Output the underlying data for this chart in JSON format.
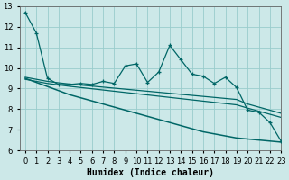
{
  "xlabel": "Humidex (Indice chaleur)",
  "bg_color": "#cce8e8",
  "grid_color": "#99cccc",
  "line_color": "#006666",
  "x": [
    0,
    1,
    2,
    3,
    4,
    5,
    6,
    7,
    8,
    9,
    10,
    11,
    12,
    13,
    14,
    15,
    16,
    17,
    18,
    19,
    20,
    21,
    22,
    23
  ],
  "y_jagged": [
    12.7,
    11.7,
    9.5,
    9.2,
    9.2,
    9.25,
    9.2,
    9.35,
    9.25,
    10.1,
    10.2,
    9.3,
    9.8,
    11.1,
    10.4,
    9.7,
    9.6,
    9.25,
    9.55,
    9.05,
    7.95,
    7.85,
    7.35,
    6.45
  ],
  "y_upper": [
    9.55,
    9.45,
    9.35,
    9.28,
    9.22,
    9.17,
    9.12,
    9.07,
    9.02,
    8.97,
    8.92,
    8.87,
    8.82,
    8.77,
    8.72,
    8.67,
    8.62,
    8.57,
    8.52,
    8.47,
    8.25,
    8.1,
    7.95,
    7.8
  ],
  "y_lower": [
    9.45,
    9.35,
    9.25,
    9.18,
    9.11,
    9.05,
    8.99,
    8.93,
    8.87,
    8.81,
    8.75,
    8.69,
    8.63,
    8.57,
    8.51,
    8.45,
    8.39,
    8.33,
    8.27,
    8.21,
    8.05,
    7.9,
    7.75,
    7.6
  ],
  "y_bottom": [
    9.5,
    9.3,
    9.1,
    8.9,
    8.7,
    8.55,
    8.4,
    8.25,
    8.1,
    7.95,
    7.8,
    7.65,
    7.5,
    7.35,
    7.2,
    7.05,
    6.9,
    6.8,
    6.7,
    6.6,
    6.55,
    6.5,
    6.45,
    6.4
  ],
  "ylim": [
    6,
    13
  ],
  "xlim": [
    -0.5,
    23
  ],
  "yticks": [
    6,
    7,
    8,
    9,
    10,
    11,
    12,
    13
  ],
  "xtick_labels": [
    "0",
    "1",
    "2",
    "3",
    "4",
    "5",
    "6",
    "7",
    "8",
    "9",
    "10",
    "11",
    "12",
    "13",
    "14",
    "15",
    "16",
    "17",
    "18",
    "19",
    "20",
    "21",
    "22",
    "23"
  ]
}
